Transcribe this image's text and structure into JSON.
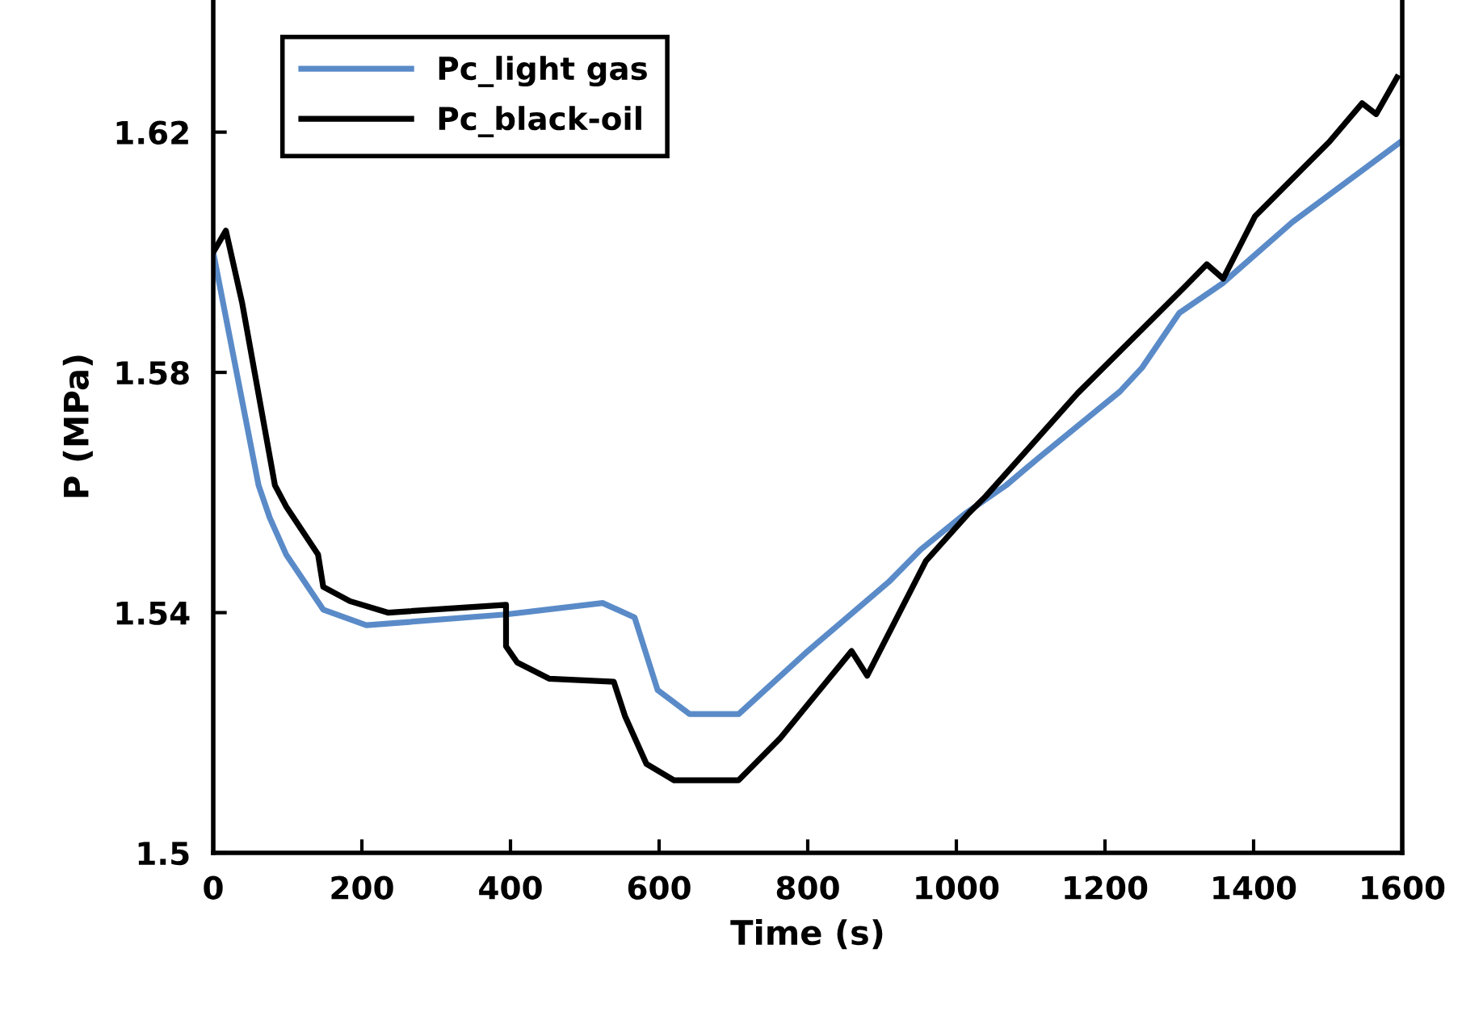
{
  "chart_data": {
    "type": "line",
    "xlabel": "Time (s)",
    "ylabel": "P (MPa)",
    "xlim": [
      0,
      1600
    ],
    "xticks": [
      0,
      200,
      400,
      600,
      800,
      1000,
      1200,
      1400,
      1600
    ],
    "ylim": [
      1.5,
      1.642
    ],
    "yticks": [
      {
        "value": 1.5,
        "label": "1.5"
      },
      1.54,
      1.58,
      1.62
    ],
    "grid": false,
    "legend": "top left",
    "line_style": "solid",
    "marker": "none",
    "series": [
      {
        "name": "Pc_light gas",
        "color": "#5a8bc8",
        "x": [
          0,
          61,
          76,
          98,
          148,
          206,
          394,
          524,
          567,
          598,
          641,
          707,
          800,
          909,
          952,
          1011,
          1067,
          1111,
          1220,
          1250,
          1300,
          1358,
          1452,
          1598
        ],
        "values": [
          1.6,
          1.5612,
          1.5558,
          1.5497,
          1.5405,
          1.5379,
          1.5397,
          1.5416,
          1.5392,
          1.5271,
          1.5231,
          1.5231,
          1.5336,
          1.5451,
          1.5505,
          1.5564,
          1.5612,
          1.5658,
          1.5768,
          1.5808,
          1.5899,
          1.5948,
          1.605,
          1.6184
        ]
      },
      {
        "name": "Pc_black-oil",
        "color": "#000000",
        "x": [
          0,
          17,
          39,
          83,
          98,
          141,
          148,
          184,
          235,
          394,
          394,
          409,
          452,
          539,
          554,
          583,
          620,
          707,
          763,
          859,
          880,
          959,
          1017,
          1039,
          1163,
          1307,
          1337,
          1359,
          1402,
          1502,
          1546,
          1565,
          1593
        ],
        "values": [
          1.6,
          1.6036,
          1.5915,
          1.5612,
          1.5577,
          1.5497,
          1.5443,
          1.5419,
          1.54,
          1.5413,
          1.5344,
          1.5317,
          1.529,
          1.5285,
          1.5228,
          1.5148,
          1.5121,
          1.5121,
          1.5191,
          1.5336,
          1.5295,
          1.5486,
          1.5566,
          1.5593,
          1.5765,
          1.5942,
          1.598,
          1.5956,
          1.606,
          1.6184,
          1.6248,
          1.623,
          1.6291
        ]
      }
    ]
  }
}
